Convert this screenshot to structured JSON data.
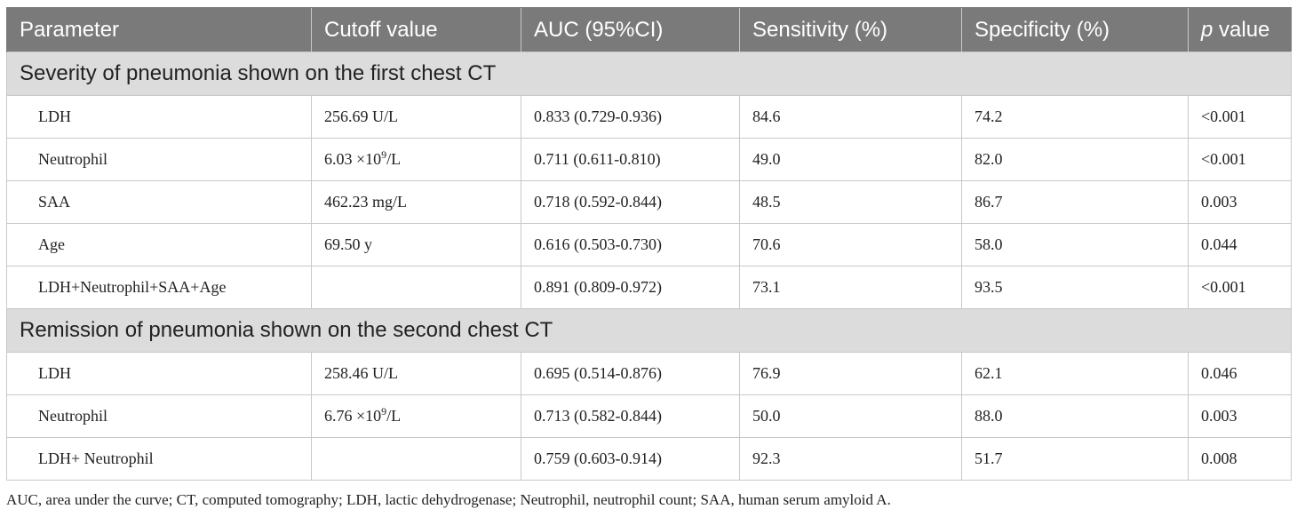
{
  "headers": {
    "parameter": "Parameter",
    "cutoff": "Cutoff value",
    "auc": "AUC (95%CI)",
    "sensitivity": "Sensitivity (%)",
    "specificity": "Specificity (%)",
    "p_italic": "p",
    "p_rest": " value"
  },
  "sections": [
    {
      "title": "Severity of pneumonia shown on the first chest CT",
      "rows": [
        {
          "parameter": "LDH",
          "cutoff": "256.69 U/L",
          "cutoff_pre": "",
          "cutoff_sup": "",
          "cutoff_post": "",
          "auc": "0.833 (0.729-0.936)",
          "sensitivity": "84.6",
          "specificity": "74.2",
          "p": "<0.001"
        },
        {
          "parameter": "Neutrophil",
          "cutoff": "",
          "cutoff_pre": "6.03 ×10",
          "cutoff_sup": "9",
          "cutoff_post": "/L",
          "auc": "0.711 (0.611-0.810)",
          "sensitivity": "49.0",
          "specificity": "82.0",
          "p": "<0.001"
        },
        {
          "parameter": "SAA",
          "cutoff": "462.23 mg/L",
          "cutoff_pre": "",
          "cutoff_sup": "",
          "cutoff_post": "",
          "auc": "0.718 (0.592-0.844)",
          "sensitivity": "48.5",
          "specificity": "86.7",
          "p": "0.003"
        },
        {
          "parameter": "Age",
          "cutoff": "69.50 y",
          "cutoff_pre": "",
          "cutoff_sup": "",
          "cutoff_post": "",
          "auc": "0.616 (0.503-0.730)",
          "sensitivity": "70.6",
          "specificity": "58.0",
          "p": "0.044"
        },
        {
          "parameter": "LDH+Neutrophil+SAA+Age",
          "cutoff": "",
          "cutoff_pre": "",
          "cutoff_sup": "",
          "cutoff_post": "",
          "auc": "0.891 (0.809-0.972)",
          "sensitivity": "73.1",
          "specificity": "93.5",
          "p": "<0.001"
        }
      ]
    },
    {
      "title": "Remission of pneumonia shown on the second chest CT",
      "rows": [
        {
          "parameter": "LDH",
          "cutoff": "258.46 U/L",
          "cutoff_pre": "",
          "cutoff_sup": "",
          "cutoff_post": "",
          "auc": "0.695 (0.514-0.876)",
          "sensitivity": "76.9",
          "specificity": "62.1",
          "p": "0.046"
        },
        {
          "parameter": "Neutrophil",
          "cutoff": "",
          "cutoff_pre": "6.76 ×10",
          "cutoff_sup": "9",
          "cutoff_post": "/L",
          "auc": "0.713 (0.582-0.844)",
          "sensitivity": "50.0",
          "specificity": "88.0",
          "p": "0.003"
        },
        {
          "parameter": "LDH+ Neutrophil",
          "cutoff": "",
          "cutoff_pre": "",
          "cutoff_sup": "",
          "cutoff_post": "",
          "auc": "0.759 (0.603-0.914)",
          "sensitivity": "92.3",
          "specificity": "51.7",
          "p": "0.008"
        }
      ]
    }
  ],
  "footnote": "AUC, area under the curve; CT, computed tomography; LDH, lactic dehydrogenase; Neutrophil, neutrophil count; SAA, human serum amyloid A."
}
